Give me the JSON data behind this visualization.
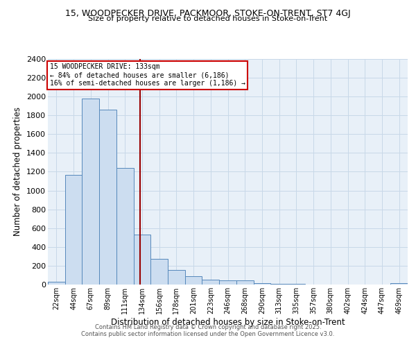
{
  "title": "15, WOODPECKER DRIVE, PACKMOOR, STOKE-ON-TRENT, ST7 4GJ",
  "subtitle": "Size of property relative to detached houses in Stoke-on-Trent",
  "xlabel": "Distribution of detached houses by size in Stoke-on-Trent",
  "ylabel": "Number of detached properties",
  "bar_labels": [
    "22sqm",
    "44sqm",
    "67sqm",
    "89sqm",
    "111sqm",
    "134sqm",
    "156sqm",
    "178sqm",
    "201sqm",
    "223sqm",
    "246sqm",
    "268sqm",
    "290sqm",
    "313sqm",
    "335sqm",
    "357sqm",
    "380sqm",
    "402sqm",
    "424sqm",
    "447sqm",
    "469sqm"
  ],
  "bar_values": [
    30,
    1170,
    1980,
    1860,
    1240,
    530,
    275,
    155,
    90,
    55,
    45,
    45,
    15,
    5,
    5,
    3,
    2,
    2,
    2,
    2,
    15
  ],
  "bar_color": "#ccddf0",
  "bar_edgecolor": "#5588bb",
  "vline_x": 4.9,
  "vline_color": "#990000",
  "annotation_text": "15 WOODPECKER DRIVE: 133sqm\n← 84% of detached houses are smaller (6,186)\n16% of semi-detached houses are larger (1,186) →",
  "annotation_box_color": "#ffffff",
  "annotation_box_edgecolor": "#cc0000",
  "ylim": [
    0,
    2400
  ],
  "yticks": [
    0,
    200,
    400,
    600,
    800,
    1000,
    1200,
    1400,
    1600,
    1800,
    2000,
    2200,
    2400
  ],
  "grid_color": "#c8d8e8",
  "bg_color": "#e8f0f8",
  "footer1": "Contains HM Land Registry data © Crown copyright and database right 2025.",
  "footer2": "Contains public sector information licensed under the Open Government Licence v3.0."
}
